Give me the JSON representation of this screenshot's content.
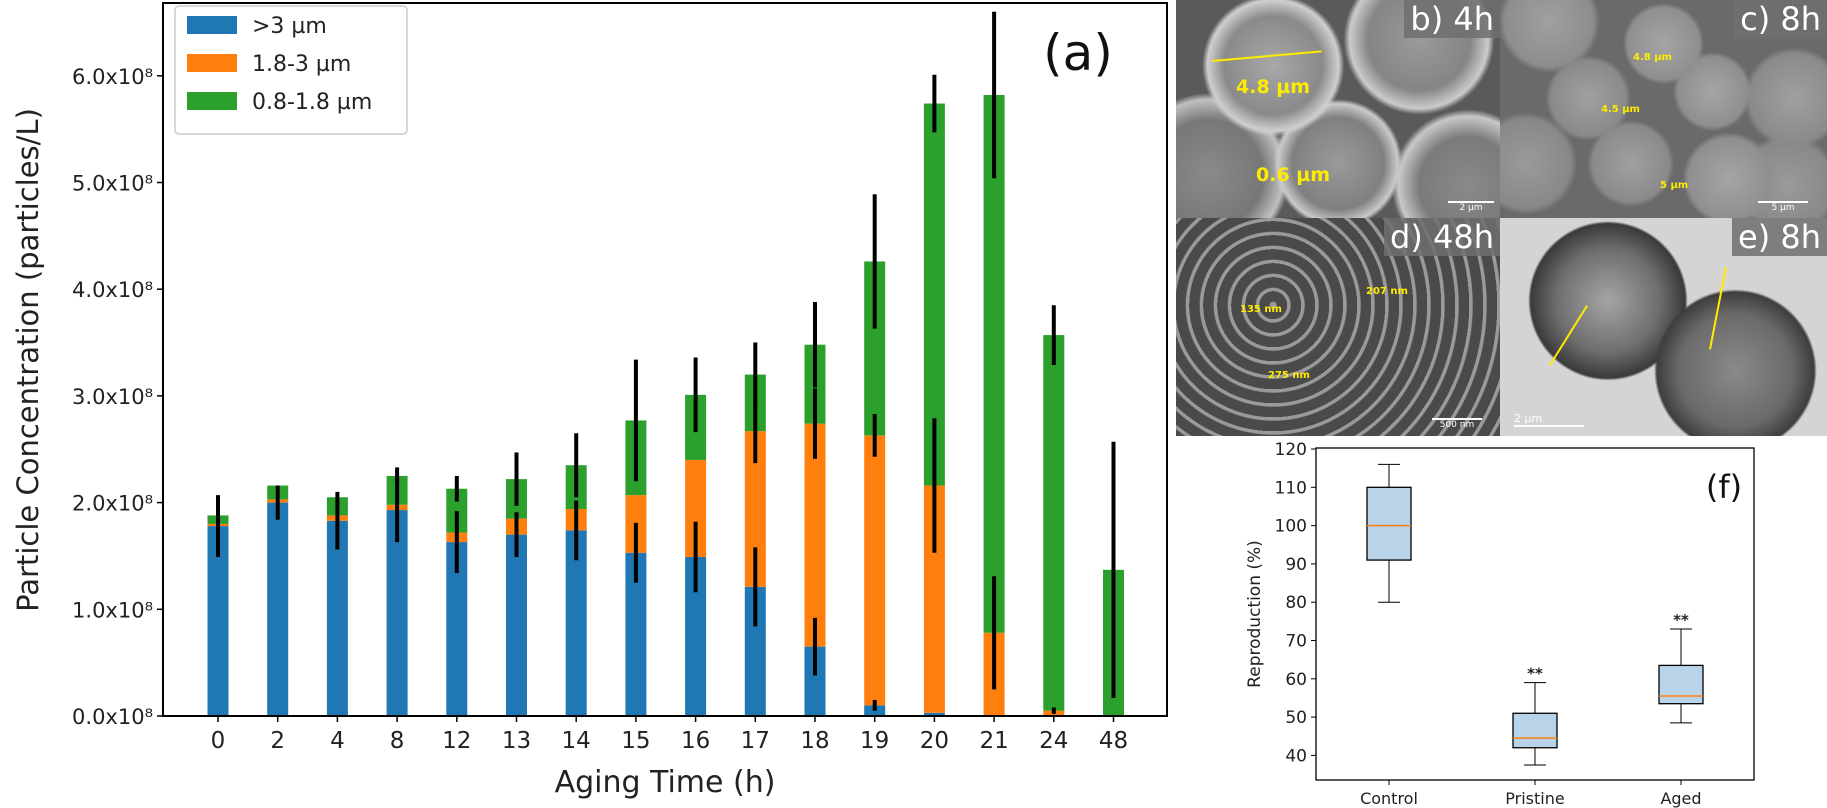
{
  "chart_data": [
    {
      "type": "bar",
      "stacked": true,
      "panel_label": "(a)",
      "xlabel": "Aging Time (h)",
      "ylabel": "Particle Concentration (particles/L)",
      "categories": [
        "0",
        "2",
        "4",
        "8",
        "12",
        "13",
        "14",
        "15",
        "16",
        "17",
        "18",
        "19",
        "20",
        "21",
        "24",
        "48"
      ],
      "ylim": [
        0,
        660000000.0
      ],
      "yticks": [
        0,
        100000000.0,
        200000000.0,
        300000000.0,
        400000000.0,
        500000000.0,
        600000000.0
      ],
      "ytick_labels": [
        "0.0x10⁸",
        "1.0x10⁸",
        "2.0x10⁸",
        "3.0x10⁸",
        "4.0x10⁸",
        "5.0x10⁸",
        "6.0x10⁸"
      ],
      "grid": false,
      "legend_position": "top-left",
      "series": [
        {
          "name": ">3 µm",
          "color": "#1f77b4",
          "values": [
            178000000.0,
            200000000.0,
            183000000.0,
            193000000.0,
            163000000.0,
            170000000.0,
            174000000.0,
            153000000.0,
            149000000.0,
            121000000.0,
            65000000.0,
            10000000.0,
            3000000.0,
            0,
            0,
            0
          ],
          "errors": [
            29000000.0,
            16000000.0,
            27000000.0,
            30000000.0,
            29000000.0,
            21000000.0,
            28000000.0,
            28000000.0,
            33000000.0,
            37000000.0,
            27000000.0,
            5000000.0,
            0,
            0,
            0,
            0
          ]
        },
        {
          "name": "1.8-3 µm",
          "color": "#ff7f0e",
          "values": [
            2000000.0,
            3000000.0,
            5000000.0,
            5000000.0,
            9000000.0,
            15000000.0,
            20000000.0,
            54000000.0,
            91000000.0,
            146000000.0,
            209000000.0,
            253000000.0,
            213000000.0,
            78000000.0,
            5000000.0,
            0
          ],
          "errors": [
            0,
            0,
            0,
            0,
            0,
            0,
            0,
            0,
            0,
            30000000.0,
            33000000.0,
            20000000.0,
            63000000.0,
            53000000.0,
            3000000.0,
            0
          ]
        },
        {
          "name": "0.8-1.8 µm",
          "color": "#2ca02c",
          "values": [
            8000000.0,
            13000000.0,
            17000000.0,
            27000000.0,
            41000000.0,
            37000000.0,
            41000000.0,
            70000000.0,
            61000000.0,
            53000000.0,
            74000000.0,
            163000000.0,
            358000000.0,
            504000000.0,
            352000000.0,
            137000000.0
          ],
          "errors": [
            0,
            0,
            0,
            8000000.0,
            12000000.0,
            25000000.0,
            30000000.0,
            57000000.0,
            35000000.0,
            30000000.0,
            40000000.0,
            63000000.0,
            27000000.0,
            78000000.0,
            28000000.0,
            120000000.0
          ]
        }
      ]
    },
    {
      "type": "box",
      "panel_label": "(f)",
      "ylabel": "Reproduction (%)",
      "ylim": [
        33.5,
        120
      ],
      "yticks": [
        40,
        50,
        60,
        70,
        80,
        90,
        100,
        110,
        120
      ],
      "box_color": "#b9d4e9",
      "median_color": "#ff7f0e",
      "groups": [
        {
          "label": "Control",
          "whisker_low": 80,
          "q1": 91,
          "median": 100,
          "q3": 110,
          "whisker_high": 116,
          "significance": ""
        },
        {
          "label": "Pristine",
          "whisker_low": 37.5,
          "q1": 42,
          "median": 44.5,
          "q3": 51,
          "whisker_high": 59,
          "significance": "**"
        },
        {
          "label": "Aged",
          "whisker_low": 48.5,
          "q1": 53.5,
          "median": 55.5,
          "q3": 63.5,
          "whisker_high": 73,
          "significance": "**"
        }
      ]
    }
  ],
  "micrographs": {
    "b": {
      "label": "b) 4h",
      "annotations": [
        "4.8 µm",
        "0.6 µm"
      ],
      "scale": "2 µm"
    },
    "c": {
      "label": "c) 8h",
      "annotations": [
        "4.8 µm",
        "4.5 µm",
        "5 µm"
      ],
      "scale": "5 µm"
    },
    "d": {
      "label": "d) 48h",
      "annotations": [
        "135 nm",
        "207 nm",
        "275 nm"
      ],
      "scale": "500 nm"
    },
    "e": {
      "label": "e) 8h",
      "scale": "2  µm"
    }
  }
}
